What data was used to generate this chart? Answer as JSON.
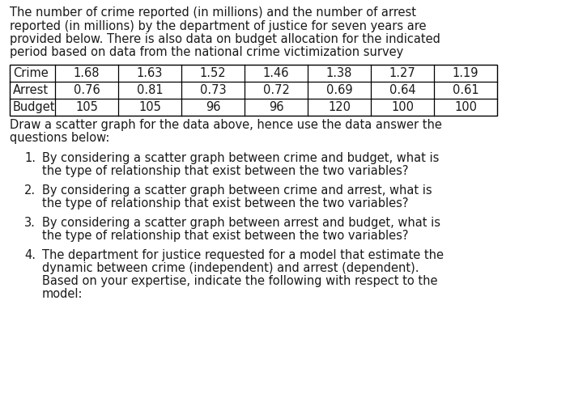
{
  "para_lines": [
    "The number of crime reported (in millions) and the number of arrest",
    "reported (in millions) by the department of justice for seven years are",
    "provided below. There is also data on budget allocation for the indicated",
    "period based on data from the national crime victimization survey"
  ],
  "row_labels": [
    "Crime",
    "Arrest",
    "Budget"
  ],
  "row_values": [
    [
      "1.68",
      "1.63",
      "1.52",
      "1.46",
      "1.38",
      "1.27",
      "1.19"
    ],
    [
      "0.76",
      "0.81",
      "0.73",
      "0.72",
      "0.69",
      "0.64",
      "0.61"
    ],
    [
      "105",
      "105",
      "96",
      "96",
      "120",
      "100",
      "100"
    ]
  ],
  "instr_lines": [
    "Draw a scatter graph for the data above, hence use the data answer the",
    "questions below:"
  ],
  "questions": [
    [
      "By considering a scatter graph between crime and budget, what is",
      "the type of relationship that exist between the two variables?"
    ],
    [
      "By considering a scatter graph between crime and arrest, what is",
      "the type of relationship that exist between the two variables?"
    ],
    [
      "By considering a scatter graph between arrest and budget, what is",
      "the type of relationship that exist between the two variables?"
    ],
    [
      "The department for justice requested for a model that estimate the",
      "dynamic between crime (independent) and arrest (dependent).",
      "Based on your expertise, indicate the following with respect to the",
      "model:"
    ]
  ],
  "bg_color": "#ffffff",
  "text_color": "#1a1a1a",
  "font_size": 10.5,
  "table_font_size": 10.5
}
